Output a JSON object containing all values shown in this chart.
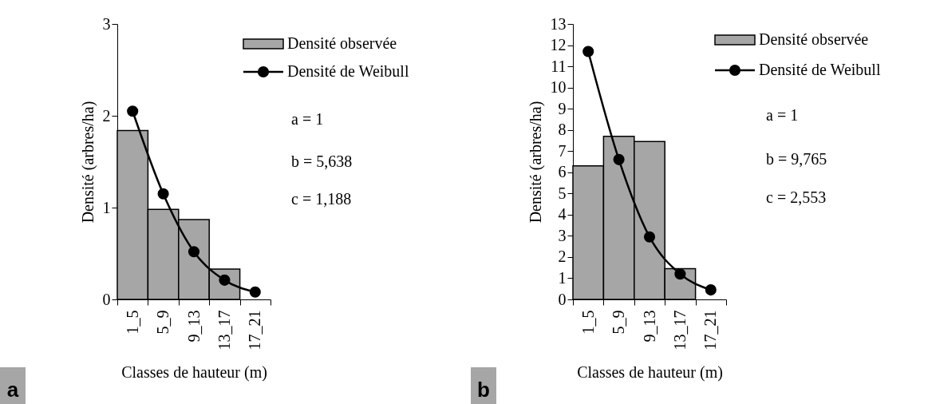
{
  "chart_data": [
    {
      "type": "bar",
      "categories": [
        "1_5",
        "5_9",
        "9_13",
        "13_17",
        "17_21"
      ],
      "xlabel": "Classes de hauteur (m)",
      "ylabel": "Densité (arbres/ha)",
      "ylim": [
        0,
        3
      ],
      "yticks": [
        0,
        1,
        2,
        3
      ],
      "legend": "top right",
      "marker": "circle",
      "grid": false,
      "series": [
        {
          "name": "Densité observée",
          "type": "bar",
          "color": "#a6a6a6",
          "values": [
            1.84,
            0.98,
            0.87,
            0.33,
            null
          ]
        },
        {
          "name": "Densité de Weibull",
          "type": "line",
          "color": "#000000",
          "values": [
            2.05,
            1.15,
            0.52,
            0.21,
            0.08
          ]
        }
      ],
      "annotations": [
        "a = 1",
        "b = 5,638",
        "c = 1,188",
        "a"
      ]
    },
    {
      "type": "bar",
      "categories": [
        "1_5",
        "5_9",
        "9_13",
        "13_17",
        "17_21"
      ],
      "xlabel": "Classes de hauteur (m)",
      "ylabel": "Densité (arbres/ha)",
      "ylim": [
        0,
        13
      ],
      "yticks": [
        0,
        1,
        2,
        3,
        4,
        5,
        6,
        7,
        8,
        9,
        10,
        11,
        12,
        13
      ],
      "legend": "top right",
      "marker": "circle",
      "grid": false,
      "series": [
        {
          "name": "Densité observée",
          "type": "bar",
          "color": "#a6a6a6",
          "values": [
            6.3,
            7.7,
            7.45,
            1.45,
            null
          ]
        },
        {
          "name": "Densité de Weibull",
          "type": "line",
          "color": "#000000",
          "values": [
            11.7,
            6.6,
            2.95,
            1.2,
            0.45
          ]
        }
      ],
      "annotations": [
        "a = 1",
        "b = 9,765",
        "c = 2,553",
        "b"
      ]
    }
  ]
}
